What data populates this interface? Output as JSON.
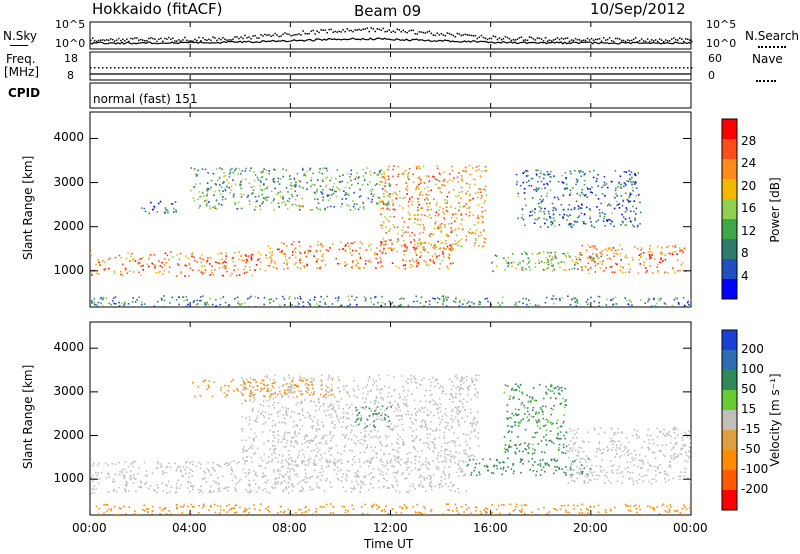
{
  "header": {
    "station": "Hokkaido (fitACF)",
    "beam": "Beam 09",
    "date": "10/Sep/2012"
  },
  "noise_panel": {
    "left_label": "N.Sky",
    "right_label": "N.Search",
    "left_ticks": [
      "10^5",
      "10^0"
    ],
    "right_ticks": [
      "10^5",
      "10^0"
    ]
  },
  "freq_panel": {
    "left_label_line1": "Freq.",
    "left_label_line2": "[MHz]",
    "right_label": "Nave",
    "left_ticks": [
      "18",
      "8"
    ],
    "right_ticks": [
      "60",
      "0"
    ]
  },
  "cpid_panel": {
    "label": "CPID",
    "mode": "normal (fast) 151"
  },
  "xaxis": {
    "label": "Time UT",
    "ticks": [
      "00:00",
      "04:00",
      "08:00",
      "12:00",
      "16:00",
      "20:00",
      "00:00"
    ]
  },
  "colors": {
    "power_scale": [
      "#0000ff",
      "#1f4fc0",
      "#2e7d6b",
      "#3fa64a",
      "#8fd14f",
      "#f5b800",
      "#ff8c1a",
      "#ff4d1a",
      "#ff0000"
    ],
    "velocity_scale": [
      "#1a3fd6",
      "#2a6fb5",
      "#2e8b57",
      "#66cc33",
      "#c0c0b8",
      "#e0a040",
      "#ff8c00",
      "#ff5a00",
      "#ff0000"
    ]
  },
  "chart_data": [
    {
      "type": "heatmap",
      "name": "power",
      "ylabel": "Slant Range [km]",
      "xlabel": "",
      "yticks": [
        "1000",
        "2000",
        "3000",
        "4000"
      ],
      "xlim": [
        0,
        24
      ],
      "ylim": [
        180,
        4600
      ],
      "colorbar": {
        "label": "Power [dB]",
        "ticks": [
          "4",
          "8",
          "12",
          "16",
          "20",
          "24",
          "28"
        ],
        "range": [
          0,
          32
        ]
      },
      "regions": [
        {
          "t0": 0.0,
          "t1": 7.0,
          "r0": 900,
          "r1": 1450,
          "value": 24
        },
        {
          "t0": 7.0,
          "t1": 14.5,
          "r0": 1050,
          "r1": 1700,
          "value": 24
        },
        {
          "t0": 11.5,
          "t1": 15.8,
          "r0": 1500,
          "r1": 3400,
          "value": 22
        },
        {
          "t0": 16.0,
          "t1": 20.5,
          "r0": 1000,
          "r1": 1450,
          "value": 14
        },
        {
          "t0": 19.5,
          "t1": 23.8,
          "r0": 950,
          "r1": 1600,
          "value": 24
        },
        {
          "t0": 4.0,
          "t1": 12.0,
          "r0": 2400,
          "r1": 3350,
          "value": 12
        },
        {
          "t0": 17.0,
          "t1": 22.0,
          "r0": 2000,
          "r1": 3300,
          "value": 8
        },
        {
          "t0": 2.0,
          "t1": 3.5,
          "r0": 2300,
          "r1": 2600,
          "value": 6
        },
        {
          "t0": 0.0,
          "t1": 24.0,
          "r0": 200,
          "r1": 450,
          "value": 10
        }
      ]
    },
    {
      "type": "heatmap",
      "name": "velocity",
      "ylabel": "Slant Range [km]",
      "xlabel": "Time UT",
      "yticks": [
        "1000",
        "2000",
        "3000",
        "4000"
      ],
      "xlim": [
        0,
        24
      ],
      "ylim": [
        180,
        4600
      ],
      "colorbar": {
        "label": "Velocity [m s⁻¹]",
        "ticks": [
          "200",
          "100",
          "50",
          "15",
          "-15",
          "-50",
          "-100",
          "-200"
        ],
        "range": [
          -250,
          250
        ]
      },
      "regions": [
        {
          "t0": 0.0,
          "t1": 15.0,
          "r0": 700,
          "r1": 1450,
          "value": 0
        },
        {
          "t0": 6.0,
          "t1": 15.5,
          "r0": 1400,
          "r1": 3400,
          "value": 0
        },
        {
          "t0": 19.0,
          "t1": 24.0,
          "r0": 900,
          "r1": 2200,
          "value": 0
        },
        {
          "t0": 15.0,
          "t1": 20.0,
          "r0": 1100,
          "r1": 1500,
          "value": 60
        },
        {
          "t0": 10.5,
          "t1": 12.0,
          "r0": 2200,
          "r1": 2700,
          "value": 60
        },
        {
          "t0": 16.5,
          "t1": 19.0,
          "r0": 1600,
          "r1": 3200,
          "value": 40
        },
        {
          "t0": 4.0,
          "t1": 10.0,
          "r0": 2900,
          "r1": 3300,
          "value": -40
        },
        {
          "t0": 0.0,
          "t1": 24.0,
          "r0": 200,
          "r1": 450,
          "value": -60
        }
      ]
    }
  ]
}
